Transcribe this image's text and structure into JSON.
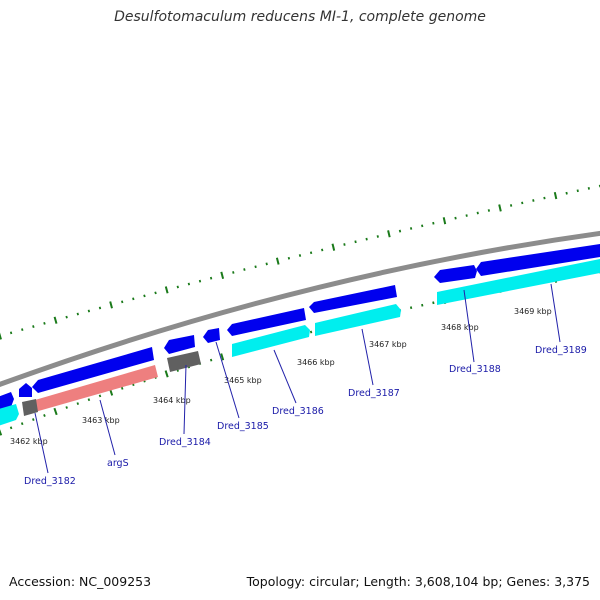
{
  "title": "Desulfotomaculum reducens MI-1, complete genome",
  "footer": {
    "accession": "Accession: NC_009253",
    "stats": "Topology: circular; Length: 3,608,104 bp; Genes: 3,375"
  },
  "colors": {
    "backbone": "#8c8c8c",
    "forward_cds": "#0000ee",
    "reverse_cds": "#00eeee",
    "trna": "#ee7f7f",
    "other": "#606060",
    "ticks": "#1a7a1a",
    "label_line": "#2222aa"
  },
  "kbp_ticks": [
    "3462 kbp",
    "3463 kbp",
    "3464 kbp",
    "3465 kbp",
    "3466 kbp",
    "3467 kbp",
    "3468 kbp",
    "3469 kbp"
  ],
  "gene_labels": [
    "Dred_3182",
    "argS",
    "Dred_3184",
    "Dred_3185",
    "Dred_3186",
    "Dred_3187",
    "Dred_3188",
    "Dred_3189"
  ]
}
